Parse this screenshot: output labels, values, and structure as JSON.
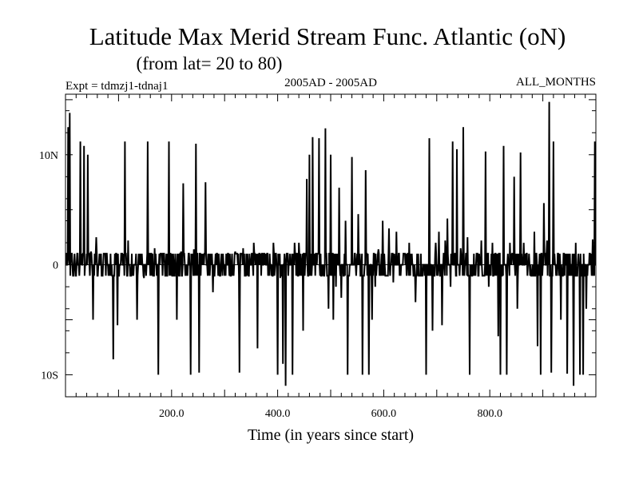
{
  "chart_data": {
    "type": "line",
    "title": "Latitude Max Merid Stream Func. Atlantic (oN)",
    "subtitle": "(from lat= 20 to 80)",
    "experiment": "Expt = tdmzj1-tdnaj1",
    "date_range": "2005AD - 2005AD",
    "months": "ALL_MONTHS",
    "xlabel": "Time (in years since start)",
    "ylabel": "",
    "xlim": [
      0,
      1000
    ],
    "ylim": [
      -12,
      15.5
    ],
    "x_ticks": [
      {
        "value": 200,
        "label": "200.0"
      },
      {
        "value": 400,
        "label": "400.0"
      },
      {
        "value": 600,
        "label": "600.0"
      },
      {
        "value": 800,
        "label": "800.0"
      }
    ],
    "y_ticks": [
      {
        "value": 10,
        "label": "10N"
      },
      {
        "value": 0,
        "label": "0"
      },
      {
        "value": -10,
        "label": "10S"
      }
    ],
    "series": [
      {
        "name": "tdmzj1-tdnaj1",
        "note": "approximate reconstruction: baseline near 0 with alternating +/-1 noise and spikes",
        "spikes": [
          [
            5,
            12.5
          ],
          [
            8,
            13.8
          ],
          [
            12,
            1
          ],
          [
            20,
            -1
          ],
          [
            28,
            11.2
          ],
          [
            35,
            10.8
          ],
          [
            42,
            10
          ],
          [
            48,
            1.2
          ],
          [
            52,
            -5
          ],
          [
            58,
            2.5
          ],
          [
            70,
            -1
          ],
          [
            85,
            1
          ],
          [
            90,
            -8.6
          ],
          [
            98,
            -5.5
          ],
          [
            112,
            11.2
          ],
          [
            118,
            2.2
          ],
          [
            125,
            1
          ],
          [
            135,
            -5
          ],
          [
            140,
            1
          ],
          [
            148,
            -1.2
          ],
          [
            155,
            11.2
          ],
          [
            162,
            1
          ],
          [
            168,
            1.5
          ],
          [
            175,
            -10
          ],
          [
            185,
            1
          ],
          [
            195,
            11.2
          ],
          [
            200,
            1
          ],
          [
            210,
            -5
          ],
          [
            218,
            1.2
          ],
          [
            222,
            7.4
          ],
          [
            230,
            -1
          ],
          [
            236,
            -10
          ],
          [
            242,
            1.4
          ],
          [
            246,
            11
          ],
          [
            252,
            -9.8
          ],
          [
            258,
            1
          ],
          [
            264,
            7.5
          ],
          [
            270,
            -1
          ],
          [
            278,
            -2.5
          ],
          [
            285,
            1
          ],
          [
            300,
            -1
          ],
          [
            315,
            -1
          ],
          [
            320,
            1.2
          ],
          [
            328,
            -9.8
          ],
          [
            335,
            1.5
          ],
          [
            345,
            -1
          ],
          [
            355,
            2
          ],
          [
            362,
            -7.6
          ],
          [
            370,
            1
          ],
          [
            385,
            1
          ],
          [
            392,
            2
          ],
          [
            400,
            -10
          ],
          [
            405,
            -1.2
          ],
          [
            410,
            -9
          ],
          [
            415,
            -11
          ],
          [
            420,
            -1
          ],
          [
            428,
            -10
          ],
          [
            432,
            2
          ],
          [
            440,
            2
          ],
          [
            448,
            -6
          ],
          [
            455,
            7.8
          ],
          [
            460,
            10
          ],
          [
            466,
            11.6
          ],
          [
            472,
            1
          ],
          [
            478,
            11.5
          ],
          [
            485,
            -1
          ],
          [
            490,
            12.4
          ],
          [
            496,
            -4
          ],
          [
            500,
            10
          ],
          [
            505,
            -5
          ],
          [
            510,
            -2
          ],
          [
            516,
            7
          ],
          [
            520,
            -3
          ],
          [
            528,
            4
          ],
          [
            532,
            -10
          ],
          [
            540,
            9.8
          ],
          [
            548,
            -1
          ],
          [
            552,
            4.6
          ],
          [
            560,
            -10
          ],
          [
            566,
            8.6
          ],
          [
            572,
            -10
          ],
          [
            578,
            -5
          ],
          [
            584,
            -2
          ],
          [
            590,
            1.4
          ],
          [
            598,
            4
          ],
          [
            604,
            -1
          ],
          [
            610,
            3.3
          ],
          [
            618,
            -1.6
          ],
          [
            624,
            3
          ],
          [
            630,
            -1
          ],
          [
            640,
            1
          ],
          [
            648,
            2
          ],
          [
            660,
            -3.4
          ],
          [
            668,
            -1
          ],
          [
            680,
            -10
          ],
          [
            686,
            11.5
          ],
          [
            692,
            -6
          ],
          [
            698,
            2
          ],
          [
            704,
            3
          ],
          [
            710,
            -5.5
          ],
          [
            716,
            2.2
          ],
          [
            720,
            4.2
          ],
          [
            726,
            -2
          ],
          [
            730,
            11.2
          ],
          [
            738,
            10.5
          ],
          [
            745,
            1.5
          ],
          [
            750,
            12.5
          ],
          [
            758,
            2.5
          ],
          [
            762,
            -10
          ],
          [
            770,
            1
          ],
          [
            778,
            -1
          ],
          [
            784,
            2.2
          ],
          [
            792,
            10.3
          ],
          [
            798,
            -2
          ],
          [
            805,
            2
          ],
          [
            810,
            1
          ],
          [
            816,
            -6.5
          ],
          [
            820,
            -10
          ],
          [
            826,
            10.8
          ],
          [
            832,
            -10
          ],
          [
            838,
            2
          ],
          [
            846,
            8
          ],
          [
            852,
            -4
          ],
          [
            858,
            10.2
          ],
          [
            864,
            2
          ],
          [
            870,
            1
          ],
          [
            878,
            -1
          ],
          [
            884,
            3
          ],
          [
            890,
            -7.4
          ],
          [
            896,
            -10
          ],
          [
            902,
            5.6
          ],
          [
            908,
            2.2
          ],
          [
            912,
            14.8
          ],
          [
            916,
            -9.8
          ],
          [
            920,
            11.2
          ],
          [
            928,
            1
          ],
          [
            934,
            -5
          ],
          [
            940,
            1
          ],
          [
            946,
            -9.9
          ],
          [
            952,
            -1
          ],
          [
            958,
            -11
          ],
          [
            962,
            2
          ],
          [
            970,
            -10
          ],
          [
            976,
            -10
          ],
          [
            982,
            -4
          ],
          [
            988,
            1
          ],
          [
            994,
            2.3
          ],
          [
            998,
            11.2
          ]
        ]
      }
    ]
  }
}
